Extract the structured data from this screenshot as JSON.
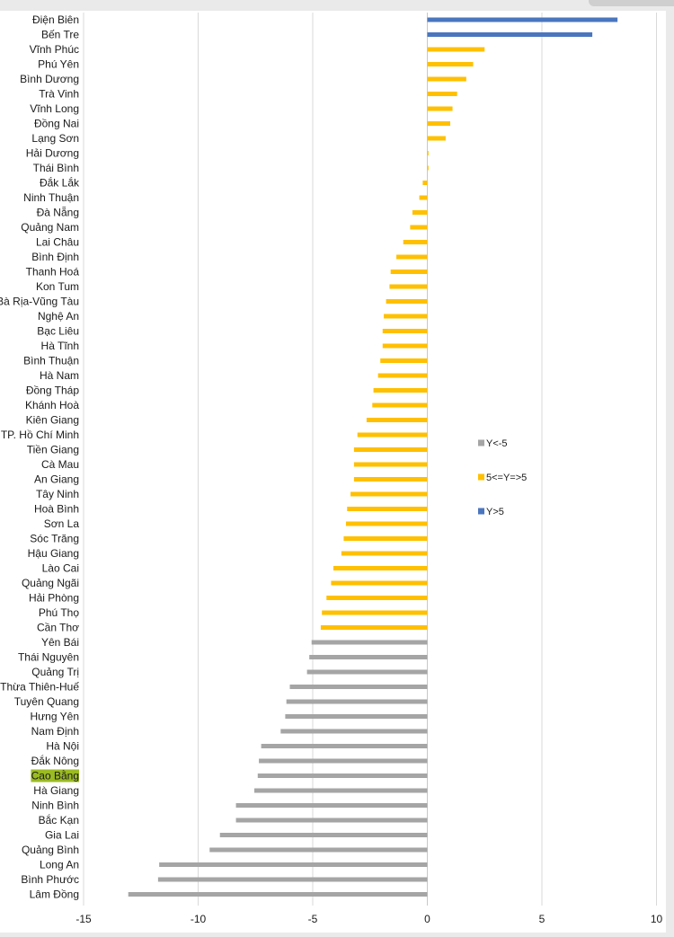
{
  "chart_data": {
    "type": "bar",
    "orientation": "horizontal",
    "title": "",
    "xlabel": "",
    "ylabel": "",
    "xlim": [
      -15,
      10
    ],
    "xticks": [
      -15,
      -10,
      -5,
      0,
      5,
      10
    ],
    "grid": "vertical",
    "highlight_category": "Cao Bằng",
    "highlight_color": "#9bbb22",
    "legend": {
      "placement": "right",
      "entries": [
        {
          "label": "Y<-5",
          "color": "#a5a5a5"
        },
        {
          "label": "5<=Y=>5",
          "color": "#ffc000"
        },
        {
          "label": "Y>5",
          "color": "#4a76be"
        }
      ]
    },
    "categories": [
      "Điện Biên",
      "Bến Tre",
      "Vĩnh Phúc",
      "Phú Yên",
      "Bình Dương",
      "Trà Vinh",
      "Vĩnh Long",
      "Đồng Nai",
      "Lạng Sơn",
      "Hải Dương",
      "Thái Bình",
      "Đắk Lắk",
      "Ninh Thuận",
      "Đà Nẵng",
      "Quảng Nam",
      "Lai Châu",
      "Bình Định",
      "Thanh Hoá",
      "Kon Tum",
      "Bà Rịa-Vũng Tàu",
      "Nghệ An",
      "Bạc Liêu",
      "Hà Tĩnh",
      "Bình Thuận",
      "Hà Nam",
      "Đồng Tháp",
      "Khánh Hoà",
      "Kiên Giang",
      "TP. Hồ Chí Minh",
      "Tiền Giang",
      "Cà Mau",
      "An Giang",
      "Tây Ninh",
      "Hoà Bình",
      "Sơn La",
      "Sóc Trăng",
      "Hậu Giang",
      "Lào Cai",
      "Quảng Ngãi",
      "Hải Phòng",
      "Phú Thọ",
      "Cần Thơ",
      "Yên Bái",
      "Thái Nguyên",
      "Quảng Trị",
      "Thừa Thiên-Huế",
      "Tuyên Quang",
      "Hưng Yên",
      "Nam Định",
      "Hà Nội",
      "Đắk Nông",
      "Cao Bằng",
      "Hà Giang",
      "Ninh Bình",
      "Bắc Kạn",
      "Gia Lai",
      "Quảng Bình",
      "Long An",
      "Bình Phước",
      "Lâm Đồng"
    ],
    "values": [
      8.3,
      7.2,
      2.5,
      2.0,
      1.7,
      1.3,
      1.1,
      1.0,
      0.8,
      0.05,
      0.05,
      -0.2,
      -0.35,
      -0.65,
      -0.75,
      -1.05,
      -1.35,
      -1.6,
      -1.65,
      -1.8,
      -1.9,
      -1.95,
      -1.95,
      -2.05,
      -2.15,
      -2.35,
      -2.4,
      -2.65,
      -3.05,
      -3.2,
      -3.2,
      -3.2,
      -3.35,
      -3.5,
      -3.55,
      -3.65,
      -3.75,
      -4.1,
      -4.2,
      -4.4,
      -4.6,
      -4.65,
      -5.05,
      -5.15,
      -5.25,
      -6.0,
      -6.15,
      -6.2,
      -6.4,
      -7.25,
      -7.35,
      -7.4,
      -7.55,
      -8.35,
      -8.35,
      -9.05,
      -9.5,
      -11.7,
      -11.75,
      -13.05
    ],
    "colors": {
      "below": "#a5a5a5",
      "middle": "#ffc000",
      "above": "#4a76be"
    }
  }
}
